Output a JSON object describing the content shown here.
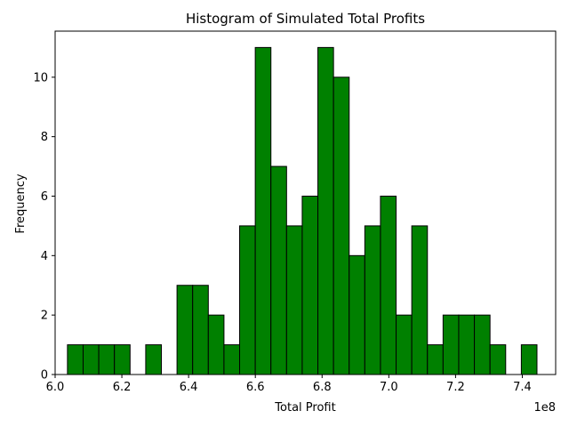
{
  "chart_data": {
    "type": "bar",
    "title": "Histogram of Simulated Total Profits",
    "xlabel": "Total Profit",
    "ylabel": "Frequency",
    "x_offset_label": "1e8",
    "bar_color": "#008000",
    "edge_color": "#000000",
    "xlim": [
      6.0,
      7.5
    ],
    "ylim": [
      0,
      11.55
    ],
    "x_ticks": [
      6.0,
      6.2,
      6.4,
      6.6,
      6.8,
      7.0,
      7.2,
      7.4
    ],
    "x_tick_labels": [
      "6.0",
      "6.2",
      "6.4",
      "6.6",
      "6.8",
      "7.0",
      "7.2",
      "7.4"
    ],
    "y_ticks": [
      0,
      2,
      4,
      6,
      8,
      10
    ],
    "y_tick_labels": [
      "0",
      "2",
      "4",
      "6",
      "8",
      "10"
    ],
    "bin_start": 6.037,
    "bin_width": 0.0469,
    "counts": [
      1,
      1,
      1,
      1,
      0,
      1,
      0,
      3,
      3,
      2,
      1,
      5,
      11,
      7,
      5,
      6,
      11,
      10,
      4,
      5,
      6,
      2,
      5,
      1,
      2,
      2,
      2,
      1,
      0,
      1
    ],
    "grid": false
  }
}
